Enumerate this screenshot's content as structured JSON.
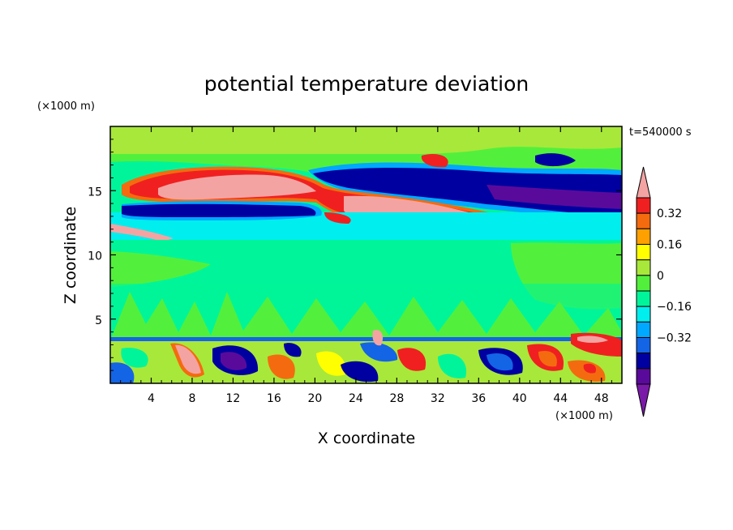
{
  "chart_data": {
    "type": "heatmap",
    "title": "potential temperature deviation",
    "time_label": "t=540000 s",
    "xlabel": "X coordinate",
    "ylabel": "Z coordinate",
    "x_unit": "(×1000 m)",
    "y_unit": "(×1000 m)",
    "xlim": [
      0,
      50
    ],
    "ylim": [
      0,
      20
    ],
    "xticks": [
      "4",
      "8",
      "12",
      "16",
      "20",
      "24",
      "28",
      "32",
      "36",
      "40",
      "44",
      "48"
    ],
    "yticks": [
      "5",
      "10",
      "15"
    ],
    "colorbar": {
      "levels": [
        -0.4,
        -0.32,
        -0.24,
        -0.16,
        -0.08,
        0,
        0.08,
        0.16,
        0.24,
        0.32,
        0.4
      ],
      "labels": [
        "0.32",
        "0.16",
        "0",
        "−0.16",
        "−0.32"
      ],
      "colors_top_to_bottom": [
        "#f4a3a3",
        "#f02020",
        "#f46b0f",
        "#fda000",
        "#ffff00",
        "#a8e83a",
        "#52f03c",
        "#00f59a",
        "#00eeee",
        "#00a8ff",
        "#1464e6",
        "#0000a0",
        "#5a0a9b",
        "#7a1aa8"
      ]
    },
    "features": [
      {
        "name": "upper warm band",
        "x_range": [
          5,
          19
        ],
        "z_range": [
          14.3,
          16.1
        ],
        "value": 0.4
      },
      {
        "name": "tilted warm band",
        "x_range": [
          22,
          46
        ],
        "z_range": [
          10,
          14.8
        ],
        "value": 0.4
      },
      {
        "name": "cold band",
        "x_range": [
          1,
          20
        ],
        "z_range": [
          12.8,
          13.9
        ],
        "value": -0.4
      },
      {
        "name": "upper cold region",
        "x_range": [
          20,
          50
        ],
        "z_range": [
          14,
          16.5
        ],
        "value": -0.32
      },
      {
        "name": "turbulent boundary layer",
        "x_range": [
          0,
          50
        ],
        "z_range": [
          0,
          3.5
        ],
        "value": "mixed"
      }
    ]
  }
}
